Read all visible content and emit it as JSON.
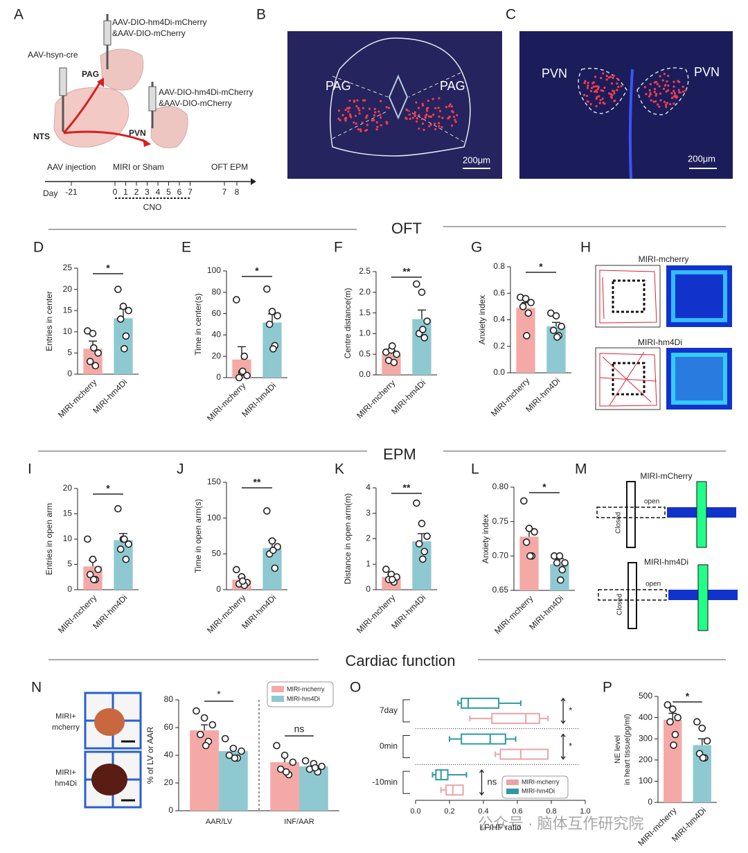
{
  "panel_labels": [
    "A",
    "B",
    "C",
    "D",
    "E",
    "F",
    "G",
    "H",
    "I",
    "J",
    "K",
    "L",
    "M",
    "N",
    "O",
    "P"
  ],
  "section_titles": [
    "OFT",
    "EPM",
    "Cardiac function"
  ],
  "schematic": {
    "injection_1": "AAV-hsyn-cre",
    "injection_2": [
      "AAV-DIO-hm4Di-mCherry",
      "&AAV-DIO-mCherry"
    ],
    "injection_3": [
      "AAV-DIO-hm4Di-mCherry",
      "&AAV-DIO-mCherry"
    ],
    "regions": [
      "PAG",
      "NTS",
      "PVN"
    ],
    "timeline": {
      "events": [
        "AAV injection",
        "MIRI or Sham",
        "OFT EPM"
      ],
      "day_label": "Day",
      "days": [
        "-21",
        "0",
        "1",
        "2",
        "3",
        "4",
        "5",
        "6",
        "7",
        "7",
        "8"
      ],
      "cno": "CNO"
    }
  },
  "images": {
    "B": {
      "labels": [
        "PAG",
        "PAG"
      ],
      "scale": "200μm"
    },
    "C": {
      "labels": [
        "PVN",
        "PVN"
      ],
      "scale": "200μm"
    },
    "H": {
      "groups": [
        "MIRI-mcherry",
        "MIRI-hm4Di"
      ]
    },
    "M": {
      "groups": [
        "MIRI-mCherry",
        "MIRI-hm4Di"
      ],
      "open": "open",
      "closed": "Closed"
    },
    "N": {
      "groups": [
        [
          "MIRI+",
          "mcherry"
        ],
        [
          "MIRI+",
          "hm4Di"
        ]
      ]
    }
  },
  "watermark": "公众号 · 脑体互作研究院",
  "chart_data": [
    {
      "type": "bar",
      "ylabel": "Entries in center",
      "categories": [
        "MIRI-mcherry",
        "MIRI-hm4Di"
      ],
      "colors": [
        "#f4a9a6",
        "#8ec9d1"
      ],
      "values": [
        6,
        13.2
      ],
      "errors": [
        1.8,
        2.2
      ],
      "points": [
        [
          10.2,
          9.6,
          5,
          3,
          2,
          6.2
        ],
        [
          20,
          16,
          15,
          13,
          9,
          6
        ]
      ],
      "ylim": [
        0,
        25
      ],
      "yticks": [
        0,
        5,
        10,
        15,
        20,
        25
      ],
      "significance": "*"
    },
    {
      "type": "bar",
      "ylabel": "Time in center(s)",
      "categories": [
        "MIRI-mcherry",
        "MIRI-hm4Di"
      ],
      "colors": [
        "#f4a9a6",
        "#8ec9d1"
      ],
      "values": [
        17,
        51.7
      ],
      "errors": [
        12,
        8
      ],
      "points": [
        [
          73,
          5,
          2,
          0,
          20,
          6
        ],
        [
          83,
          62,
          58,
          50,
          30,
          27
        ]
      ],
      "ylim": [
        0,
        100
      ],
      "yticks": [
        0,
        20,
        40,
        60,
        80,
        100
      ],
      "significance": "*"
    },
    {
      "type": "bar",
      "ylabel": "Centre distance(m)",
      "categories": [
        "MIRI-mcherry",
        "MIRI-hm4Di"
      ],
      "colors": [
        "#f4a9a6",
        "#8ec9d1"
      ],
      "values": [
        0.5,
        1.35
      ],
      "errors": [
        0.1,
        0.22
      ],
      "points": [
        [
          0.55,
          0.6,
          0.5,
          0.35,
          0.3,
          0.7
        ],
        [
          2.2,
          2.0,
          1.3,
          1.0,
          0.9,
          1.1
        ]
      ],
      "ylim": [
        0,
        2.5
      ],
      "yticks": [
        {
          "value": 0,
          "label": "0.0"
        },
        0.5,
        {
          "value": 1,
          "label": "1.0"
        },
        1.5,
        {
          "value": 2,
          "label": "2.0"
        },
        2.5
      ],
      "significance": "**"
    },
    {
      "type": "bar",
      "ylabel": "Anxiety index",
      "categories": [
        "MIRI-mcherry",
        "MIRI-hm4Di"
      ],
      "colors": [
        "#f4a9a6",
        "#8ec9d1"
      ],
      "values": [
        0.49,
        0.35
      ],
      "errors": [
        0.04,
        0.03
      ],
      "points": [
        [
          0.57,
          0.56,
          0.53,
          0.5,
          0.45,
          0.28
        ],
        [
          0.45,
          0.43,
          0.35,
          0.32,
          0.28,
          0.27
        ]
      ],
      "ylim": [
        0,
        0.8
      ],
      "yticks": [
        {
          "value": 0,
          "label": "0.0"
        },
        0.2,
        0.4,
        0.6,
        0.8
      ],
      "significance": "*"
    },
    {
      "type": "bar",
      "ylabel": "Entries in open arm",
      "categories": [
        "MIRI-mcherry",
        "MIRI-hm4Di"
      ],
      "colors": [
        "#f4a9a6",
        "#8ec9d1"
      ],
      "values": [
        4.6,
        9.8
      ],
      "errors": [
        1.2,
        1.3
      ],
      "points": [
        [
          10,
          6,
          4,
          3,
          2,
          2
        ],
        [
          16,
          10,
          9,
          8,
          6,
          10
        ]
      ],
      "ylim": [
        0,
        20
      ],
      "yticks": [
        0,
        5,
        10,
        15,
        20
      ],
      "significance": "*"
    },
    {
      "type": "bar",
      "ylabel": "Time in open arm(s)",
      "categories": [
        "MIRI-mcherry",
        "MIRI-hm4Di"
      ],
      "colors": [
        "#f4a9a6",
        "#8ec9d1"
      ],
      "values": [
        14,
        58
      ],
      "errors": [
        4,
        11
      ],
      "points": [
        [
          28,
          18,
          10,
          8,
          6,
          12
        ],
        [
          110,
          68,
          60,
          50,
          30,
          55
        ]
      ],
      "ylim": [
        0,
        150
      ],
      "yticks": [
        0,
        50,
        100,
        150
      ],
      "significance": "**"
    },
    {
      "type": "bar",
      "ylabel": "Distance in open arm(m)",
      "categories": [
        "MIRI-mcherry",
        "MIRI-hm4Di"
      ],
      "colors": [
        "#f4a9a6",
        "#8ec9d1"
      ],
      "values": [
        0.5,
        1.9
      ],
      "errors": [
        0.1,
        0.3
      ],
      "points": [
        [
          0.8,
          0.6,
          0.5,
          0.4,
          0.3,
          0.4
        ],
        [
          3.4,
          2.6,
          2.1,
          1.8,
          1.5,
          1.2
        ]
      ],
      "ylim": [
        0,
        4
      ],
      "yticks": [
        0,
        1,
        2,
        3,
        4
      ],
      "significance": "**"
    },
    {
      "type": "bar",
      "ylabel": "Anxiety index",
      "categories": [
        "MIRI-mcherry",
        "MIRI-hm4Di"
      ],
      "colors": [
        "#f4a9a6",
        "#8ec9d1"
      ],
      "values": [
        0.728,
        0.688
      ],
      "errors": [
        0.012,
        0.008
      ],
      "points": [
        [
          0.78,
          0.74,
          0.735,
          0.72,
          0.7,
          0.7
        ],
        [
          0.7,
          0.7,
          0.69,
          0.69,
          0.68,
          0.665
        ]
      ],
      "ylim": [
        0.65,
        0.8
      ],
      "yticks": [
        0.65,
        {
          "value": 0.7,
          "label": "0.70"
        },
        0.75,
        {
          "value": 0.8,
          "label": "0.80"
        }
      ],
      "significance": "*"
    },
    {
      "type": "bar",
      "ylabel": "% of LV or AAR",
      "categories": [
        "AAR/LV",
        "INF/AAR"
      ],
      "series": [
        {
          "name": "MIRI-mcherry",
          "color": "#f4a9a6",
          "values": [
            58,
            35
          ],
          "errors": [
            4,
            4
          ],
          "points": [
            [
              72,
              67,
              62,
              55,
              50,
              47
            ],
            [
              47,
              40,
              35,
              30,
              26,
              28
            ]
          ]
        },
        {
          "name": "MIRI-hm4Di",
          "color": "#8ec9d1",
          "values": [
            43,
            32
          ],
          "errors": [
            3,
            2
          ],
          "points": [
            [
              52,
              45,
              43,
              40,
              38,
              38
            ],
            [
              36,
              34,
              32,
              30,
              28,
              31
            ]
          ]
        }
      ],
      "ylim": [
        0,
        80
      ],
      "yticks": [
        0,
        20,
        40,
        60,
        80
      ],
      "significance": [
        "*",
        "ns"
      ]
    },
    {
      "type": "box",
      "xlabel": "LF/HF ratio",
      "categories": [
        "7day",
        "0min",
        "-10min"
      ],
      "series": [
        {
          "name": "MIRI-mcherry",
          "color": "#e8a4a8",
          "values": [
            [
              0.32,
              0.45,
              0.65,
              0.73,
              0.78
            ],
            [
              0.47,
              0.5,
              0.62,
              0.78,
              0.78
            ],
            [
              0.15,
              0.18,
              0.22,
              0.28,
              0.28
            ]
          ]
        },
        {
          "name": "MIRI-hm4Di",
          "color": "#2e9aa0",
          "values": [
            [
              0.25,
              0.27,
              0.31,
              0.49,
              0.62
            ],
            [
              0.2,
              0.27,
              0.44,
              0.53,
              0.59
            ],
            [
              0.1,
              0.12,
              0.15,
              0.19,
              0.3
            ]
          ]
        }
      ],
      "xlim": [
        0,
        1
      ],
      "xticks": [
        {
          "value": 0,
          "label": "0.0"
        },
        0.2,
        0.4,
        0.6,
        0.8,
        {
          "value": 1,
          "label": "1.0"
        }
      ],
      "significance": [
        "*",
        "*",
        "ns"
      ]
    },
    {
      "type": "bar",
      "ylabel": [
        "NE level",
        "in heart tissue(pg/ml)"
      ],
      "categories": [
        "MIRI-mcherry",
        "MIRI-hm4Di"
      ],
      "colors": [
        "#f4a9a6",
        "#8ec9d1"
      ],
      "values": [
        390,
        270
      ],
      "errors": [
        30,
        30
      ],
      "points": [
        [
          460,
          440,
          400,
          380,
          320,
          270
        ],
        [
          380,
          350,
          290,
          230,
          210,
          210
        ]
      ],
      "ylim": [
        0,
        500
      ],
      "yticks": [
        0,
        100,
        200,
        300,
        400,
        500
      ],
      "significance": "*"
    }
  ]
}
